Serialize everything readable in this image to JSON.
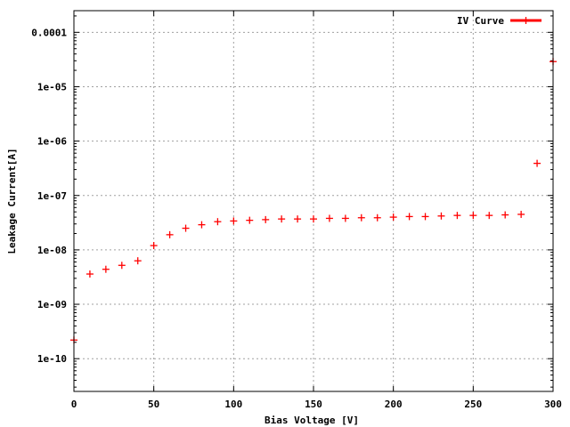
{
  "chart_data": {
    "type": "scatter",
    "title": "",
    "xlabel": "Bias Voltage [V]",
    "ylabel": "Leakage Current[A]",
    "xlim": [
      0,
      300
    ],
    "ylim": [
      2.5e-11,
      0.00025
    ],
    "yscale": "log",
    "grid": true,
    "legend_position": "top-right",
    "x_ticks": [
      0,
      50,
      100,
      150,
      200,
      250,
      300
    ],
    "x_tick_labels": [
      "0",
      "50",
      "100",
      "150",
      "200",
      "250",
      "300"
    ],
    "y_ticks": [
      1e-10,
      1e-09,
      1e-08,
      1e-07,
      1e-06,
      1e-05,
      0.0001
    ],
    "y_tick_labels": [
      "1e-10",
      "1e-09",
      "1e-08",
      "1e-07",
      "1e-06",
      "1e-05",
      "0.0001"
    ],
    "series": [
      {
        "name": "IV Curve",
        "color": "#ff0000",
        "marker": "plus",
        "x": [
          0,
          10,
          20,
          30,
          40,
          50,
          60,
          70,
          80,
          90,
          100,
          110,
          120,
          130,
          140,
          150,
          160,
          170,
          180,
          190,
          200,
          210,
          220,
          230,
          240,
          250,
          260,
          270,
          280,
          290,
          300
        ],
        "y": [
          2.2e-10,
          3.6e-09,
          4.4e-09,
          5.2e-09,
          6.3e-09,
          1.2e-08,
          1.9e-08,
          2.5e-08,
          2.9e-08,
          3.3e-08,
          3.4e-08,
          3.5e-08,
          3.6e-08,
          3.7e-08,
          3.7e-08,
          3.7e-08,
          3.8e-08,
          3.8e-08,
          3.9e-08,
          3.9e-08,
          4e-08,
          4.1e-08,
          4.1e-08,
          4.2e-08,
          4.3e-08,
          4.3e-08,
          4.3e-08,
          4.4e-08,
          4.5e-08,
          3.9e-07,
          2.9e-05
        ]
      }
    ]
  }
}
